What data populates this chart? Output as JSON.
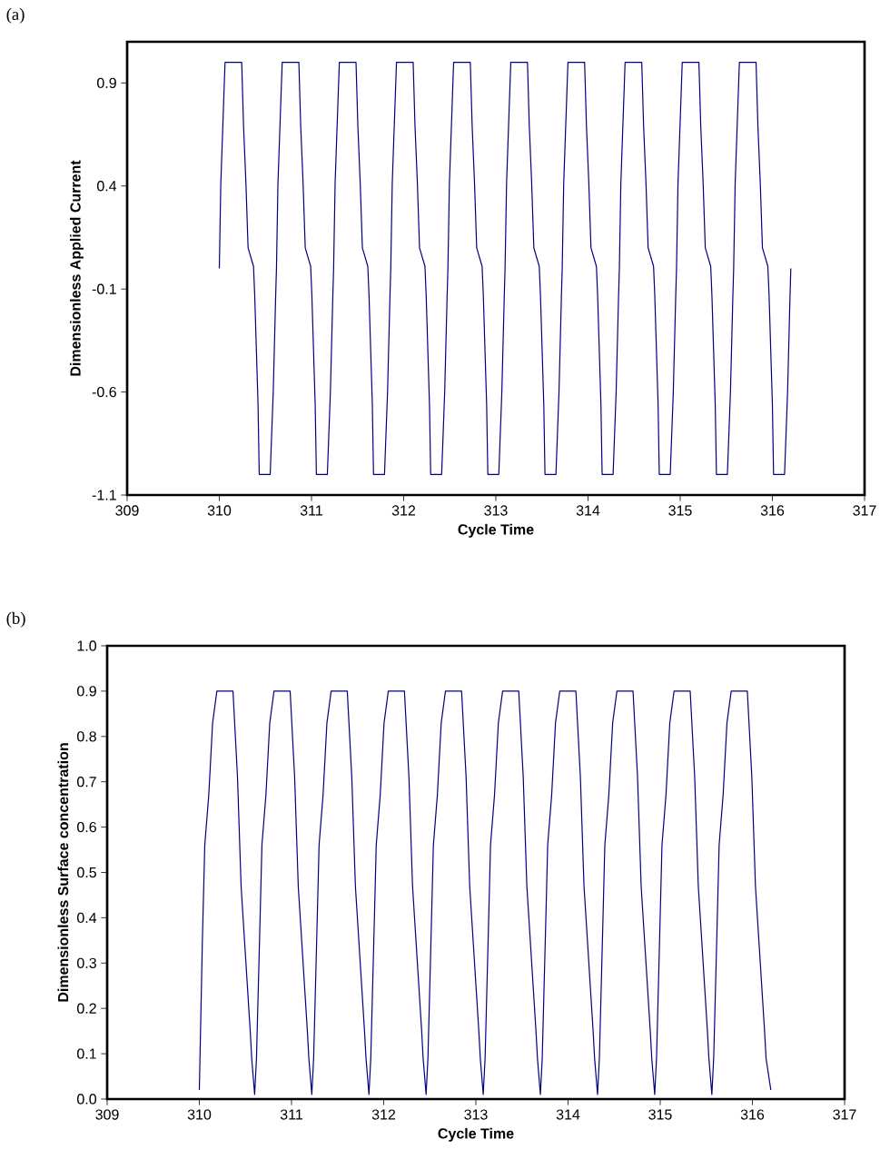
{
  "chart_data": [
    {
      "type": "line",
      "title": "(a)",
      "xlabel": "Cycle Time",
      "ylabel": "Dimensionless Applied Current",
      "xlim": [
        309,
        317
      ],
      "xticks": [
        309,
        310,
        311,
        312,
        313,
        314,
        315,
        316,
        317
      ],
      "ylim": [
        -1.1,
        1.1
      ],
      "yticks": [
        -1.1,
        -0.6,
        -0.1,
        0.4,
        0.9
      ],
      "x": [
        310,
        310.016,
        310.062,
        310.243,
        310.263,
        310.289,
        310.312,
        310.371,
        310.384,
        310.42,
        310.433,
        310.552,
        310.585,
        310.611,
        310.62,
        310.636,
        310.682,
        310.863,
        310.883,
        310.909,
        310.932,
        310.991,
        311.004,
        311.04,
        311.053,
        311.172,
        311.205,
        311.231,
        311.24,
        311.256,
        311.302,
        311.483,
        311.503,
        311.529,
        311.552,
        311.611,
        311.624,
        311.66,
        311.673,
        311.792,
        311.825,
        311.851,
        311.86,
        311.876,
        311.922,
        312.103,
        312.123,
        312.149,
        312.172,
        312.231,
        312.244,
        312.28,
        312.293,
        312.412,
        312.445,
        312.471,
        312.48,
        312.496,
        312.542,
        312.723,
        312.743,
        312.769,
        312.792,
        312.851,
        312.864,
        312.9,
        312.913,
        313.032,
        313.065,
        313.091,
        313.1,
        313.116,
        313.162,
        313.343,
        313.363,
        313.389,
        313.412,
        313.471,
        313.484,
        313.52,
        313.533,
        313.652,
        313.685,
        313.711,
        313.72,
        313.736,
        313.782,
        313.963,
        313.983,
        314.009,
        314.032,
        314.091,
        314.104,
        314.14,
        314.153,
        314.272,
        314.305,
        314.331,
        314.34,
        314.356,
        314.402,
        314.583,
        314.603,
        314.629,
        314.652,
        314.711,
        314.724,
        314.76,
        314.773,
        314.892,
        314.925,
        314.951,
        314.96,
        314.976,
        315.022,
        315.203,
        315.223,
        315.249,
        315.272,
        315.331,
        315.344,
        315.38,
        315.393,
        315.512,
        315.545,
        315.571,
        315.58,
        315.596,
        315.642,
        315.823,
        315.843,
        315.869,
        315.892,
        315.951,
        315.964,
        316,
        316.013,
        316.132,
        316.165,
        316.191,
        316.2
      ],
      "series": [
        {
          "color": "#000080",
          "values": [
            0,
            0.41,
            1.0,
            1.0,
            0.69,
            0.41,
            0.1,
            0.01,
            -0.13,
            -0.66,
            -1.0,
            -1.0,
            -0.6,
            -0.14,
            0,
            0.41,
            1.0,
            1.0,
            0.69,
            0.41,
            0.1,
            0.01,
            -0.13,
            -0.66,
            -1.0,
            -1.0,
            -0.6,
            -0.14,
            0,
            0.41,
            1.0,
            1.0,
            0.69,
            0.41,
            0.1,
            0.01,
            -0.13,
            -0.66,
            -1.0,
            -1.0,
            -0.6,
            -0.14,
            0,
            0.41,
            1.0,
            1.0,
            0.69,
            0.41,
            0.1,
            0.01,
            -0.13,
            -0.66,
            -1.0,
            -1.0,
            -0.6,
            -0.14,
            0,
            0.41,
            1.0,
            1.0,
            0.69,
            0.41,
            0.1,
            0.01,
            -0.13,
            -0.66,
            -1.0,
            -1.0,
            -0.6,
            -0.14,
            0,
            0.41,
            1.0,
            1.0,
            0.69,
            0.41,
            0.1,
            0.01,
            -0.13,
            -0.66,
            -1.0,
            -1.0,
            -0.6,
            -0.14,
            0,
            0.41,
            1.0,
            1.0,
            0.69,
            0.41,
            0.1,
            0.01,
            -0.13,
            -0.66,
            -1.0,
            -1.0,
            -0.6,
            -0.14,
            0,
            0.41,
            1.0,
            1.0,
            0.69,
            0.41,
            0.1,
            0.01,
            -0.13,
            -0.66,
            -1.0,
            -1.0,
            -0.6,
            -0.14,
            0,
            0.41,
            1.0,
            1.0,
            0.69,
            0.41,
            0.1,
            0.01,
            -0.13,
            -0.66,
            -1.0,
            -1.0,
            -0.6,
            -0.14,
            0,
            0.41,
            1.0,
            1.0,
            0.69,
            0.41,
            0.1,
            0.01,
            -0.13,
            -0.66,
            -1.0,
            -1.0,
            -0.6,
            -0.14,
            0
          ]
        }
      ]
    },
    {
      "type": "line",
      "title": "(b)",
      "xlabel": "Cycle Time",
      "ylabel": "Dimensionless Surface concentration",
      "xlim": [
        309,
        317
      ],
      "xticks": [
        309,
        310,
        311,
        312,
        313,
        314,
        315,
        316,
        317
      ],
      "ylim": [
        0,
        1
      ],
      "yticks": [
        {
          "value": 0,
          "label": "0.0"
        },
        0.1,
        0.2,
        0.3,
        0.4,
        0.5,
        0.6,
        0.7,
        0.8,
        0.9,
        {
          "value": 1,
          "label": "1.0"
        }
      ],
      "x": [
        310,
        310.033,
        310.059,
        310.102,
        310.144,
        310.19,
        310.365,
        310.414,
        310.453,
        310.552,
        310.568,
        310.6,
        310.62,
        310.653,
        310.679,
        310.722,
        310.764,
        310.81,
        310.985,
        311.034,
        311.073,
        311.172,
        311.188,
        311.22,
        311.24,
        311.273,
        311.299,
        311.342,
        311.384,
        311.43,
        311.605,
        311.654,
        311.693,
        311.792,
        311.808,
        311.84,
        311.86,
        311.893,
        311.919,
        311.962,
        312.004,
        312.05,
        312.225,
        312.274,
        312.313,
        312.412,
        312.428,
        312.46,
        312.48,
        312.513,
        312.539,
        312.582,
        312.624,
        312.67,
        312.845,
        312.894,
        312.933,
        313.032,
        313.048,
        313.08,
        313.1,
        313.133,
        313.159,
        313.202,
        313.244,
        313.29,
        313.465,
        313.514,
        313.553,
        313.652,
        313.668,
        313.7,
        313.72,
        313.753,
        313.779,
        313.822,
        313.864,
        313.91,
        314.085,
        314.134,
        314.173,
        314.272,
        314.288,
        314.32,
        314.34,
        314.373,
        314.399,
        314.442,
        314.484,
        314.53,
        314.705,
        314.754,
        314.793,
        314.892,
        314.908,
        314.94,
        314.96,
        314.993,
        315.019,
        315.062,
        315.104,
        315.15,
        315.325,
        315.374,
        315.413,
        315.512,
        315.528,
        315.56,
        315.58,
        315.613,
        315.639,
        315.682,
        315.724,
        315.77,
        315.945,
        315.994,
        316.033,
        316.132,
        316.148,
        316.2
      ],
      "series": [
        {
          "color": "#000080",
          "values": [
            0.02,
            0.35,
            0.56,
            0.67,
            0.83,
            0.9,
            0.9,
            0.71,
            0.47,
            0.15,
            0.09,
            0.01,
            0.09,
            0.35,
            0.56,
            0.67,
            0.83,
            0.9,
            0.9,
            0.71,
            0.47,
            0.15,
            0.09,
            0.01,
            0.09,
            0.35,
            0.56,
            0.67,
            0.83,
            0.9,
            0.9,
            0.71,
            0.47,
            0.15,
            0.09,
            0.01,
            0.09,
            0.35,
            0.56,
            0.67,
            0.83,
            0.9,
            0.9,
            0.71,
            0.47,
            0.15,
            0.09,
            0.01,
            0.09,
            0.35,
            0.56,
            0.67,
            0.83,
            0.9,
            0.9,
            0.71,
            0.47,
            0.15,
            0.09,
            0.01,
            0.09,
            0.35,
            0.56,
            0.67,
            0.83,
            0.9,
            0.9,
            0.71,
            0.47,
            0.15,
            0.09,
            0.01,
            0.09,
            0.35,
            0.56,
            0.67,
            0.83,
            0.9,
            0.9,
            0.71,
            0.47,
            0.15,
            0.09,
            0.01,
            0.09,
            0.35,
            0.56,
            0.67,
            0.83,
            0.9,
            0.9,
            0.71,
            0.47,
            0.15,
            0.09,
            0.01,
            0.09,
            0.35,
            0.56,
            0.67,
            0.83,
            0.9,
            0.9,
            0.71,
            0.47,
            0.15,
            0.09,
            0.01,
            0.09,
            0.35,
            0.56,
            0.67,
            0.83,
            0.9,
            0.9,
            0.71,
            0.47,
            0.15,
            0.09,
            0.02
          ]
        }
      ]
    }
  ]
}
